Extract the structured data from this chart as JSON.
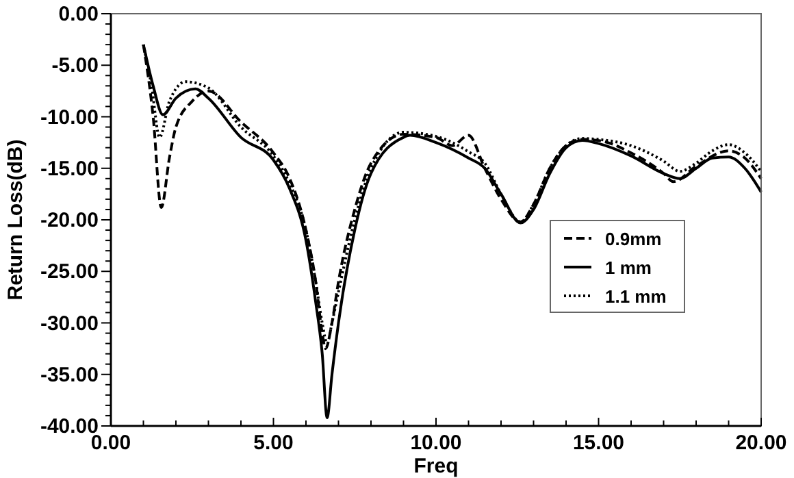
{
  "chart_data": {
    "type": "line",
    "xlabel": "Freq",
    "ylabel": "Return Loss(dB)",
    "xlim": [
      0,
      20
    ],
    "ylim": [
      -40,
      0
    ],
    "xticks": [
      {
        "value": 0,
        "label": "0.00"
      },
      {
        "value": 1,
        "label": null
      },
      {
        "value": 2,
        "label": null
      },
      {
        "value": 3,
        "label": null
      },
      {
        "value": 4,
        "label": null
      },
      {
        "value": 5,
        "label": "5.00"
      },
      {
        "value": 6,
        "label": null
      },
      {
        "value": 7,
        "label": null
      },
      {
        "value": 8,
        "label": null
      },
      {
        "value": 9,
        "label": null
      },
      {
        "value": 10,
        "label": "10.00"
      },
      {
        "value": 11,
        "label": null
      },
      {
        "value": 12,
        "label": null
      },
      {
        "value": 13,
        "label": null
      },
      {
        "value": 14,
        "label": null
      },
      {
        "value": 15,
        "label": "15.00"
      },
      {
        "value": 16,
        "label": null
      },
      {
        "value": 17,
        "label": null
      },
      {
        "value": 18,
        "label": null
      },
      {
        "value": 19,
        "label": null
      },
      {
        "value": 20,
        "label": "20.00"
      }
    ],
    "yticks": [
      {
        "value": -40,
        "label": "-40.00"
      },
      {
        "value": -39,
        "label": null
      },
      {
        "value": -38,
        "label": null
      },
      {
        "value": -37,
        "label": null
      },
      {
        "value": -36,
        "label": null
      },
      {
        "value": -35,
        "label": "-35.00"
      },
      {
        "value": -34,
        "label": null
      },
      {
        "value": -33,
        "label": null
      },
      {
        "value": -32,
        "label": null
      },
      {
        "value": -31,
        "label": null
      },
      {
        "value": -30,
        "label": "-30.00"
      },
      {
        "value": -29,
        "label": null
      },
      {
        "value": -28,
        "label": null
      },
      {
        "value": -27,
        "label": null
      },
      {
        "value": -26,
        "label": null
      },
      {
        "value": -25,
        "label": "-25.00"
      },
      {
        "value": -24,
        "label": null
      },
      {
        "value": -23,
        "label": null
      },
      {
        "value": -22,
        "label": null
      },
      {
        "value": -21,
        "label": null
      },
      {
        "value": -20,
        "label": "-20.00"
      },
      {
        "value": -19,
        "label": null
      },
      {
        "value": -18,
        "label": null
      },
      {
        "value": -17,
        "label": null
      },
      {
        "value": -16,
        "label": null
      },
      {
        "value": -15,
        "label": "-15.00"
      },
      {
        "value": -14,
        "label": null
      },
      {
        "value": -13,
        "label": null
      },
      {
        "value": -12,
        "label": null
      },
      {
        "value": -11,
        "label": null
      },
      {
        "value": -10,
        "label": "-10.00"
      },
      {
        "value": -9,
        "label": null
      },
      {
        "value": -8,
        "label": null
      },
      {
        "value": -7,
        "label": null
      },
      {
        "value": -6,
        "label": null
      },
      {
        "value": -5,
        "label": "-5.00"
      },
      {
        "value": -4,
        "label": null
      },
      {
        "value": -3,
        "label": null
      },
      {
        "value": -2,
        "label": null
      },
      {
        "value": -1,
        "label": null
      },
      {
        "value": 0,
        "label": "0.00"
      }
    ],
    "grid": false,
    "legend": "right",
    "marker": "none",
    "series": [
      {
        "name": "0.9mm",
        "color": "#000000",
        "line_style": "dashed",
        "x": [
          1,
          1.3,
          1.55,
          1.8,
          2,
          2.5,
          3,
          4,
          5,
          5.5,
          6,
          6.3,
          6.5,
          6.6,
          6.8,
          7,
          7.5,
          8,
          9,
          10,
          10.5,
          11,
          11.5,
          12,
          12.6,
          13,
          13.5,
          14,
          14.5,
          15,
          16,
          17,
          17.3,
          18,
          19,
          19.5,
          20
        ],
        "values": [
          -3,
          -10,
          -18.8,
          -14,
          -11,
          -8.5,
          -7.5,
          -10.5,
          -13.5,
          -16,
          -21,
          -26,
          -31,
          -32.5,
          -30,
          -26,
          -19,
          -14.5,
          -11.7,
          -12,
          -12.8,
          -11.8,
          -15,
          -18,
          -20.2,
          -18.5,
          -15,
          -12.8,
          -12.2,
          -12.3,
          -13.5,
          -15.5,
          -16.3,
          -14.8,
          -13.3,
          -14,
          -16
        ]
      },
      {
        "name": "1 mm",
        "color": "#000000",
        "line_style": "solid",
        "x": [
          1,
          1.3,
          1.6,
          2,
          2.6,
          3,
          4,
          5,
          5.5,
          6,
          6.3,
          6.5,
          6.65,
          6.8,
          7,
          7.5,
          8,
          9,
          9.2,
          10,
          11,
          11.5,
          12,
          12.6,
          13,
          13.5,
          14,
          14.5,
          15,
          16,
          17,
          17.5,
          18,
          18.5,
          19,
          19.5,
          20
        ],
        "values": [
          -3,
          -7,
          -9.8,
          -8.2,
          -7.3,
          -8.2,
          -12,
          -14.2,
          -17,
          -22,
          -28,
          -33,
          -39.2,
          -35,
          -30,
          -21,
          -15.5,
          -12,
          -11.8,
          -12.5,
          -14,
          -15,
          -17.5,
          -20.3,
          -19,
          -15.5,
          -13,
          -12.3,
          -12.6,
          -13.8,
          -15.5,
          -16,
          -15,
          -14,
          -13.9,
          -15,
          -17.3
        ]
      },
      {
        "name": "1.1 mm",
        "color": "#000000",
        "line_style": "dotted",
        "x": [
          1,
          1.25,
          1.5,
          1.8,
          2.3,
          3,
          4,
          5,
          5.5,
          6,
          6.3,
          6.5,
          6.65,
          6.8,
          7,
          7.5,
          8,
          9,
          10,
          10.5,
          11,
          11.5,
          12,
          12.6,
          13,
          13.5,
          14,
          14.5,
          15,
          16,
          17,
          17.5,
          18,
          18.5,
          19,
          19.5,
          20
        ],
        "values": [
          -3,
          -7,
          -12,
          -8.5,
          -6.6,
          -7.2,
          -11,
          -13.8,
          -16.5,
          -21,
          -26,
          -30,
          -32,
          -30,
          -27,
          -20,
          -15,
          -11.5,
          -11.9,
          -12.5,
          -13.4,
          -14.5,
          -17.5,
          -20.2,
          -18.5,
          -15,
          -12.8,
          -12.1,
          -12.2,
          -12.8,
          -14.3,
          -15.3,
          -14.5,
          -13.3,
          -12.7,
          -13.5,
          -15.3
        ]
      }
    ]
  }
}
